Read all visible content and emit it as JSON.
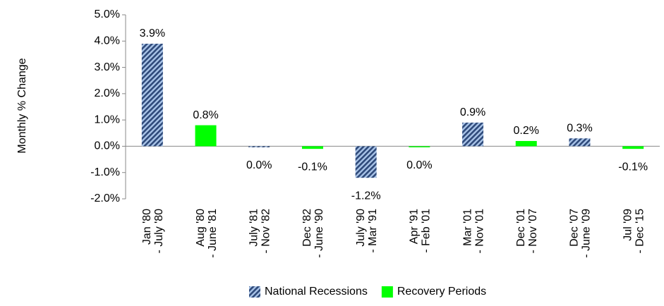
{
  "chart_data": {
    "type": "bar",
    "y_label": "Monthly % Change",
    "categories": [
      [
        "Jan '80",
        "- July '80"
      ],
      [
        "Aug '80",
        "- June '81"
      ],
      [
        "July '81",
        "- Nov '82"
      ],
      [
        "Dec '82",
        "- June '90"
      ],
      [
        "July '90",
        "- Mar '91"
      ],
      [
        "Apr '91",
        "- Feb '01"
      ],
      [
        "Mar '01",
        "- Nov '01"
      ],
      [
        "Dec '01",
        "- Nov '07"
      ],
      [
        "Dec '07",
        "- June '09"
      ],
      [
        "Jul '09",
        "- Dec '15"
      ]
    ],
    "series": [
      {
        "name": "National Recessions",
        "color": "#2f4a7a",
        "hatch": true,
        "values": [
          3.9,
          null,
          -0.04,
          null,
          -1.2,
          null,
          0.9,
          null,
          0.3,
          null
        ],
        "value_labels": [
          "3.9%",
          null,
          "0.0%",
          null,
          "-1.2%",
          null,
          "0.9%",
          null,
          "0.3%",
          null
        ]
      },
      {
        "name": "Recovery Periods",
        "color": "#00ff00",
        "hatch": false,
        "values": [
          null,
          0.8,
          null,
          -0.1,
          null,
          -0.04,
          null,
          0.2,
          null,
          -0.1
        ],
        "value_labels": [
          null,
          "0.8%",
          null,
          "-0.1%",
          null,
          "0.0%",
          null,
          "0.2%",
          null,
          "-0.1%"
        ]
      }
    ],
    "ylim": [
      -2,
      5
    ],
    "yticks": [
      {
        "value": -2,
        "label": "-2.0%"
      },
      {
        "value": -1,
        "label": "-1.0%"
      },
      {
        "value": 0,
        "label": "0.0%"
      },
      {
        "value": 1,
        "label": "1.0%"
      },
      {
        "value": 2,
        "label": "2.0%"
      },
      {
        "value": 3,
        "label": "3.0%"
      },
      {
        "value": 4,
        "label": "4.0%"
      },
      {
        "value": 5,
        "label": "5.0%"
      }
    ],
    "grid": false,
    "legend": "bottom"
  }
}
